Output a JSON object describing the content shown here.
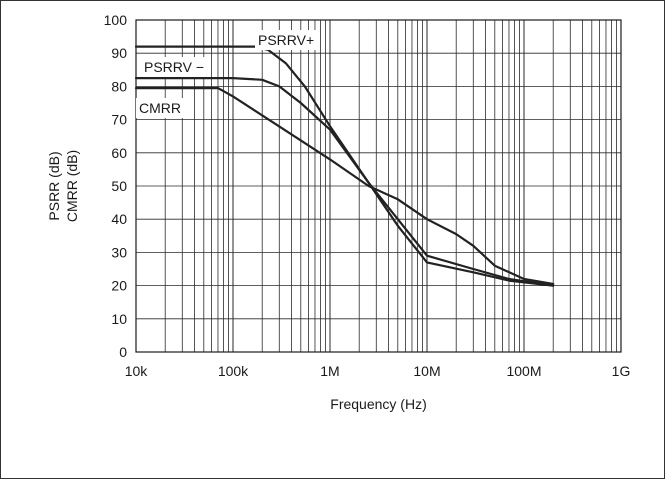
{
  "chart_data": {
    "type": "line",
    "xscale": "log",
    "xlabel": "Frequency (Hz)",
    "ylabel": [
      "PSRR (dB)",
      "CMRR (dB)"
    ],
    "xlim": [
      10000,
      1000000000
    ],
    "ylim": [
      0,
      100
    ],
    "grid": true,
    "x_ticks": [
      {
        "value": 10000,
        "label": "10k"
      },
      {
        "value": 100000,
        "label": "100k"
      },
      {
        "value": 1000000,
        "label": "1M"
      },
      {
        "value": 10000000,
        "label": "10M"
      },
      {
        "value": 100000000,
        "label": "100M"
      },
      {
        "value": 1000000000,
        "label": "1G"
      }
    ],
    "y_ticks": [
      0,
      10,
      20,
      30,
      40,
      50,
      60,
      70,
      80,
      90,
      100
    ],
    "series": [
      {
        "name": "PSRRV+",
        "color": "#222222",
        "points": [
          [
            10000,
            92
          ],
          [
            60000,
            92
          ],
          [
            170000,
            92
          ],
          [
            230000,
            91
          ],
          [
            350000,
            87
          ],
          [
            550000,
            80
          ],
          [
            1000000,
            68
          ],
          [
            2500000,
            51
          ],
          [
            5000000,
            38
          ],
          [
            10000000,
            27
          ],
          [
            30000000,
            24
          ],
          [
            70000000,
            21.5
          ],
          [
            200000000,
            20
          ]
        ]
      },
      {
        "name": "PSRRV −",
        "color": "#222222",
        "points": [
          [
            10000,
            82.5
          ],
          [
            100000,
            82.5
          ],
          [
            200000,
            82
          ],
          [
            300000,
            80
          ],
          [
            500000,
            75
          ],
          [
            1000000,
            67
          ],
          [
            2500000,
            51
          ],
          [
            5000000,
            40
          ],
          [
            10000000,
            29
          ],
          [
            30000000,
            25
          ],
          [
            70000000,
            22
          ],
          [
            200000000,
            20
          ]
        ]
      },
      {
        "name": "CMRR",
        "color": "#222222",
        "points": [
          [
            10000,
            79.5
          ],
          [
            50000,
            79.5
          ],
          [
            70000,
            79.5
          ],
          [
            100000,
            77
          ],
          [
            1000000,
            58
          ],
          [
            2500000,
            50
          ],
          [
            5000000,
            46
          ],
          [
            10000000,
            40
          ],
          [
            20000000,
            35.5
          ],
          [
            30000000,
            32
          ],
          [
            50000000,
            26
          ],
          [
            100000000,
            22
          ],
          [
            200000000,
            20.5
          ]
        ]
      }
    ]
  }
}
